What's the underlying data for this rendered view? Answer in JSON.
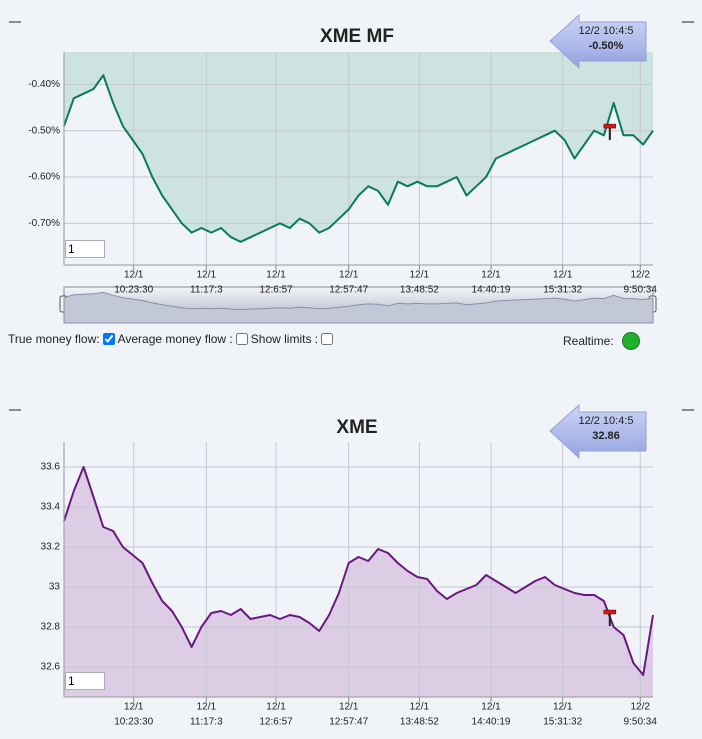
{
  "chart_data": [
    {
      "type": "line",
      "title": "XME MF",
      "series": [
        {
          "color": "#0a7a5a",
          "fill": "#cde3e0",
          "values": [
            -0.49,
            -0.43,
            -0.42,
            -0.41,
            -0.38,
            -0.44,
            -0.49,
            -0.52,
            -0.55,
            -0.6,
            -0.64,
            -0.67,
            -0.7,
            -0.72,
            -0.71,
            -0.72,
            -0.71,
            -0.73,
            -0.74,
            -0.73,
            -0.72,
            -0.71,
            -0.7,
            -0.71,
            -0.69,
            -0.7,
            -0.72,
            -0.71,
            -0.69,
            -0.67,
            -0.64,
            -0.62,
            -0.63,
            -0.66,
            -0.61,
            -0.62,
            -0.61,
            -0.62,
            -0.62,
            -0.61,
            -0.6,
            -0.64,
            -0.62,
            -0.6,
            -0.56,
            -0.55,
            -0.54,
            -0.53,
            -0.52,
            -0.51,
            -0.5,
            -0.52,
            -0.56,
            -0.53,
            -0.5,
            -0.51,
            -0.44,
            -0.51,
            -0.51,
            -0.53,
            -0.5
          ]
        }
      ],
      "xlim": [
        0,
        60
      ],
      "xticks": [
        {
          "value": 7.1,
          "date": "12/1",
          "label": "10:23:30"
        },
        {
          "value": 14.5,
          "date": "12/1",
          "label": "11:17:3"
        },
        {
          "value": 21.6,
          "date": "12/1",
          "label": "12:6:57"
        },
        {
          "value": 29.0,
          "date": "12/1",
          "label": "12:57:47"
        },
        {
          "value": 36.2,
          "date": "12/1",
          "label": "13:48:52"
        },
        {
          "value": 43.5,
          "date": "12/1",
          "label": "14:40:19"
        },
        {
          "value": 50.8,
          "date": "12/1",
          "label": "15:31:32"
        },
        {
          "value": 58.7,
          "date": "12/2",
          "label": "9:50:34"
        }
      ],
      "ylim": [
        -0.79,
        -0.33
      ],
      "yticks": [
        {
          "value": -0.4,
          "label": "-0.40%"
        },
        {
          "value": -0.5,
          "label": "-0.50%"
        },
        {
          "value": -0.6,
          "label": "-0.60%"
        },
        {
          "value": -0.7,
          "label": "-0.70%"
        }
      ],
      "grid": true,
      "marker": {
        "x": 55.6,
        "value": -0.49
      },
      "tooltip": {
        "time": "12/2 10:4:5",
        "value": -0.5,
        "value_label": "-0.50%"
      },
      "range_input": "1"
    },
    {
      "type": "line",
      "title": "XME",
      "series": [
        {
          "color": "#6a1880",
          "fill": "#dccde4",
          "values": [
            33.33,
            33.48,
            33.6,
            33.45,
            33.3,
            33.28,
            33.2,
            33.16,
            33.12,
            33.02,
            32.93,
            32.88,
            32.8,
            32.7,
            32.8,
            32.87,
            32.88,
            32.86,
            32.89,
            32.84,
            32.85,
            32.86,
            32.84,
            32.86,
            32.85,
            32.82,
            32.78,
            32.86,
            32.97,
            33.12,
            33.15,
            33.13,
            33.19,
            33.17,
            33.12,
            33.08,
            33.05,
            33.04,
            32.98,
            32.94,
            32.97,
            32.99,
            33.01,
            33.06,
            33.03,
            33.0,
            32.97,
            33.0,
            33.03,
            33.05,
            33.01,
            32.99,
            32.97,
            32.96,
            32.96,
            32.93,
            32.8,
            32.76,
            32.62,
            32.56,
            32.86
          ]
        }
      ],
      "xlim": [
        0,
        60
      ],
      "xticks": [
        {
          "value": 7.1,
          "date": "12/1",
          "label": "10:23:30"
        },
        {
          "value": 14.5,
          "date": "12/1",
          "label": "11:17:3"
        },
        {
          "value": 21.6,
          "date": "12/1",
          "label": "12:6:57"
        },
        {
          "value": 29.0,
          "date": "12/1",
          "label": "12:57:47"
        },
        {
          "value": 36.2,
          "date": "12/1",
          "label": "13:48:52"
        },
        {
          "value": 43.5,
          "date": "12/1",
          "label": "14:40:19"
        },
        {
          "value": 50.8,
          "date": "12/1",
          "label": "15:31:32"
        },
        {
          "value": 58.7,
          "date": "12/2",
          "label": "9:50:34"
        }
      ],
      "ylim": [
        32.45,
        33.725
      ],
      "yticks": [
        33.6,
        33.4,
        33.2,
        33,
        32.8,
        32.6
      ],
      "grid": true,
      "marker": {
        "x": 55.6,
        "value": 32.875
      },
      "tooltip": {
        "time": "12/2 10:4:5",
        "value": 32.86
      },
      "range_input": "1"
    }
  ],
  "controls": {
    "true_money_flow": {
      "label": "True money flow:",
      "checked": true
    },
    "average_money_flow": {
      "label": "Average money flow :",
      "checked": false
    },
    "show_limits": {
      "label": "Show limits :",
      "checked": false
    },
    "realtime": {
      "label": "Realtime:",
      "color": "#22b02c"
    }
  }
}
